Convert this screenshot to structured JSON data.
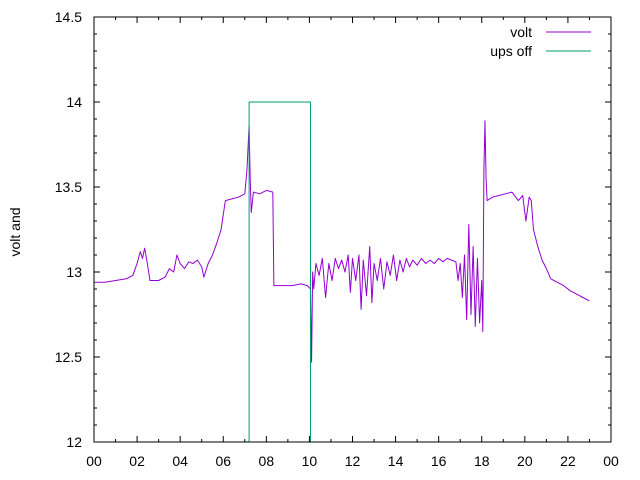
{
  "chart_data": {
    "type": "line",
    "title": "",
    "xlabel": "",
    "ylabel": "volt and",
    "xlim": [
      0,
      24
    ],
    "ylim": [
      12,
      14.5
    ],
    "x_ticks": [
      "00",
      "02",
      "04",
      "06",
      "08",
      "10",
      "12",
      "14",
      "16",
      "18",
      "20",
      "22",
      "00"
    ],
    "y_ticks": [
      "12",
      "12.5",
      "13",
      "13.5",
      "14",
      "14.5"
    ],
    "grid": false,
    "legend_position": "top-right",
    "colors": {
      "volt": "#9400d3",
      "ups_off": "#009e73"
    },
    "series": [
      {
        "name": "volt",
        "points": [
          [
            0.0,
            12.94
          ],
          [
            0.5,
            12.94
          ],
          [
            1.0,
            12.95
          ],
          [
            1.5,
            12.96
          ],
          [
            1.8,
            12.98
          ],
          [
            2.0,
            13.05
          ],
          [
            2.15,
            13.12
          ],
          [
            2.25,
            13.08
          ],
          [
            2.35,
            13.14
          ],
          [
            2.45,
            13.07
          ],
          [
            2.6,
            12.95
          ],
          [
            3.0,
            12.95
          ],
          [
            3.3,
            12.97
          ],
          [
            3.5,
            13.02
          ],
          [
            3.7,
            13.0
          ],
          [
            3.85,
            13.1
          ],
          [
            4.0,
            13.05
          ],
          [
            4.2,
            13.02
          ],
          [
            4.4,
            13.06
          ],
          [
            4.6,
            13.05
          ],
          [
            4.8,
            13.07
          ],
          [
            5.0,
            13.03
          ],
          [
            5.1,
            12.97
          ],
          [
            5.3,
            13.05
          ],
          [
            5.5,
            13.1
          ],
          [
            5.7,
            13.17
          ],
          [
            5.9,
            13.25
          ],
          [
            6.05,
            13.38
          ],
          [
            6.1,
            13.42
          ],
          [
            6.4,
            13.43
          ],
          [
            6.7,
            13.44
          ],
          [
            7.0,
            13.46
          ],
          [
            7.1,
            13.6
          ],
          [
            7.2,
            13.86
          ],
          [
            7.25,
            13.55
          ],
          [
            7.3,
            13.35
          ],
          [
            7.4,
            13.47
          ],
          [
            7.7,
            13.46
          ],
          [
            8.0,
            13.48
          ],
          [
            8.3,
            13.47
          ],
          [
            8.35,
            12.92
          ],
          [
            8.8,
            12.92
          ],
          [
            9.2,
            12.92
          ],
          [
            9.6,
            12.93
          ],
          [
            9.9,
            12.92
          ],
          [
            10.05,
            12.9
          ],
          [
            10.1,
            12.47
          ],
          [
            10.15,
            13.0
          ],
          [
            10.2,
            12.9
          ],
          [
            10.3,
            13.05
          ],
          [
            10.45,
            12.98
          ],
          [
            10.6,
            13.08
          ],
          [
            10.75,
            12.85
          ],
          [
            10.9,
            13.05
          ],
          [
            11.05,
            12.95
          ],
          [
            11.2,
            13.08
          ],
          [
            11.35,
            13.02
          ],
          [
            11.5,
            13.07
          ],
          [
            11.65,
            13.0
          ],
          [
            11.8,
            13.1
          ],
          [
            11.9,
            12.88
          ],
          [
            12.0,
            13.08
          ],
          [
            12.15,
            12.95
          ],
          [
            12.3,
            13.1
          ],
          [
            12.4,
            12.78
          ],
          [
            12.5,
            13.07
          ],
          [
            12.65,
            12.86
          ],
          [
            12.8,
            13.15
          ],
          [
            12.9,
            12.82
          ],
          [
            13.0,
            13.05
          ],
          [
            13.15,
            12.95
          ],
          [
            13.3,
            13.08
          ],
          [
            13.45,
            12.9
          ],
          [
            13.6,
            13.06
          ],
          [
            13.75,
            12.98
          ],
          [
            13.9,
            13.1
          ],
          [
            14.05,
            12.95
          ],
          [
            14.2,
            13.07
          ],
          [
            14.35,
            13.0
          ],
          [
            14.5,
            13.08
          ],
          [
            14.65,
            13.03
          ],
          [
            14.8,
            13.07
          ],
          [
            15.0,
            13.04
          ],
          [
            15.2,
            13.08
          ],
          [
            15.4,
            13.05
          ],
          [
            15.6,
            13.07
          ],
          [
            15.8,
            13.05
          ],
          [
            16.0,
            13.08
          ],
          [
            16.2,
            13.06
          ],
          [
            16.4,
            13.08
          ],
          [
            16.6,
            13.07
          ],
          [
            16.8,
            13.06
          ],
          [
            16.9,
            12.95
          ],
          [
            17.0,
            13.05
          ],
          [
            17.1,
            12.85
          ],
          [
            17.2,
            13.1
          ],
          [
            17.3,
            12.72
          ],
          [
            17.4,
            13.28
          ],
          [
            17.5,
            12.75
          ],
          [
            17.6,
            13.15
          ],
          [
            17.7,
            12.68
          ],
          [
            17.8,
            13.08
          ],
          [
            17.9,
            12.7
          ],
          [
            18.0,
            12.95
          ],
          [
            18.05,
            12.65
          ],
          [
            18.1,
            13.6
          ],
          [
            18.15,
            13.89
          ],
          [
            18.2,
            13.55
          ],
          [
            18.25,
            13.42
          ],
          [
            18.5,
            13.44
          ],
          [
            18.8,
            13.45
          ],
          [
            19.1,
            13.46
          ],
          [
            19.4,
            13.47
          ],
          [
            19.7,
            13.42
          ],
          [
            19.9,
            13.45
          ],
          [
            20.05,
            13.3
          ],
          [
            20.2,
            13.44
          ],
          [
            20.3,
            13.42
          ],
          [
            20.4,
            13.25
          ],
          [
            20.6,
            13.15
          ],
          [
            20.8,
            13.07
          ],
          [
            21.0,
            13.02
          ],
          [
            21.2,
            12.96
          ],
          [
            21.5,
            12.94
          ],
          [
            21.8,
            12.92
          ],
          [
            22.1,
            12.89
          ],
          [
            22.4,
            12.87
          ],
          [
            22.7,
            12.85
          ],
          [
            23.0,
            12.83
          ]
        ]
      },
      {
        "name": "ups off",
        "points": [
          [
            7.2,
            12.0
          ],
          [
            7.2,
            14.0
          ],
          [
            10.05,
            14.0
          ],
          [
            10.05,
            12.0
          ]
        ]
      }
    ]
  }
}
